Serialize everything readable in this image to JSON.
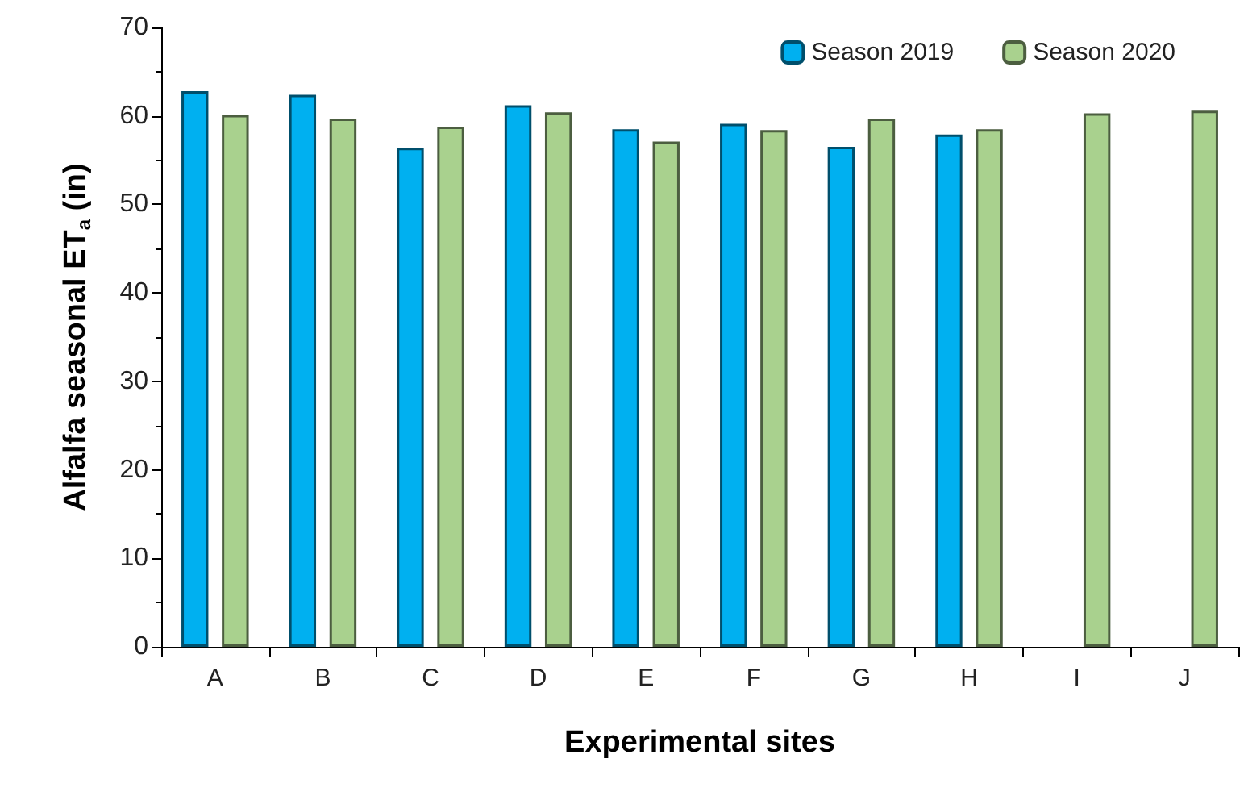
{
  "chart_data": {
    "type": "bar",
    "xlabel": "Experimental sites",
    "ylabel": "Alfalfa seasonal ET$_{a}$ (in)",
    "categories": [
      "A",
      "B",
      "C",
      "D",
      "E",
      "F",
      "G",
      "H",
      "I",
      "J"
    ],
    "series": [
      {
        "name": "Season 2019",
        "color": "#00b0f0",
        "values": [
          62.8,
          62.4,
          56.4,
          61.2,
          58.5,
          59.1,
          56.5,
          57.9,
          null,
          null
        ]
      },
      {
        "name": "Season 2020",
        "color": "#a9d18e",
        "values": [
          60.1,
          59.7,
          58.8,
          60.4,
          57.1,
          58.4,
          59.7,
          58.5,
          60.3,
          60.6
        ]
      }
    ],
    "ylim": [
      0,
      70
    ],
    "yticks": [
      0,
      10,
      20,
      30,
      40,
      50,
      60,
      70
    ],
    "grid": false,
    "legend": "top right"
  }
}
